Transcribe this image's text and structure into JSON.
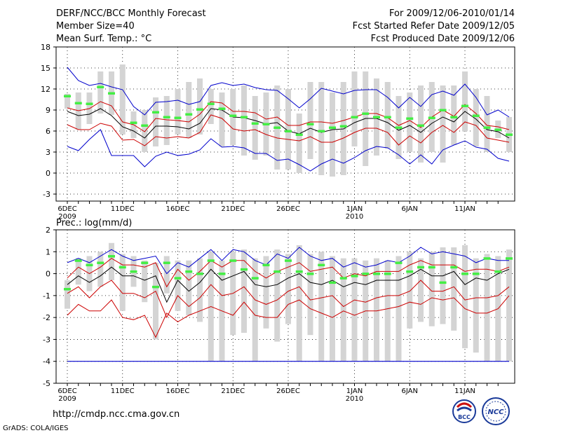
{
  "header": {
    "title": "DERF/NCC/BCC Monthly Forecast",
    "member_size": "Member Size=40",
    "variable": "Mean Surf. Temp.: °C",
    "period": "For 2009/12/06-2010/01/14",
    "started": "Fcst Started Refer Date 2009/12/05",
    "produced": "Fcst Produced Date 2009/12/06"
  },
  "footer": {
    "url": "http://cmdp.ncc.cma.gov.cn",
    "credit": "GrADS: COLA/IGES",
    "logo_bcc": "BCC",
    "logo_ncc": "NCC"
  },
  "colors": {
    "max_min": "#0000cc",
    "percentile": "#cc0000",
    "mean": "#000000",
    "bar": "#d4d4d4",
    "marker": "#44ee44",
    "frame": "#000000"
  },
  "chart_data": [
    {
      "type": "line",
      "title": "Mean Surf. Temp.: °C",
      "ylabel": "°C",
      "ylim": [
        -4,
        18
      ],
      "yticks": [
        -3,
        0,
        3,
        6,
        9,
        12,
        15,
        18
      ],
      "xlim": [
        0,
        39
      ],
      "x_ticks": [
        {
          "label": "6DEC",
          "sub": "2009",
          "day": 0
        },
        {
          "label": "11DEC",
          "sub": "",
          "day": 5
        },
        {
          "label": "16DEC",
          "sub": "",
          "day": 10
        },
        {
          "label": "21DEC",
          "sub": "",
          "day": 15
        },
        {
          "label": "26DEC",
          "sub": "",
          "day": 20
        },
        {
          "label": "1JAN",
          "sub": "2010",
          "day": 26
        },
        {
          "label": "6JAN",
          "sub": "",
          "day": 31
        },
        {
          "label": "11JAN",
          "sub": "",
          "day": 36
        }
      ],
      "series": [
        {
          "name": "max",
          "color": "#0000cc",
          "values": [
            15.1,
            13.2,
            12.5,
            12.8,
            12.3,
            11.9,
            9.5,
            8.3,
            10.1,
            10.2,
            10.4,
            9.8,
            10.2,
            12.5,
            12.9,
            12.5,
            12.7,
            12.2,
            11.9,
            11.8,
            10.6,
            9.3,
            10.6,
            12.1,
            11.7,
            11.3,
            11.8,
            11.9,
            11.9,
            10.8,
            9.3,
            10.8,
            9.5,
            11.2,
            11.7,
            11.1,
            12.7,
            10.8,
            8.3,
            9.0,
            8.0
          ]
        },
        {
          "name": "p90",
          "color": "#cc0000",
          "values": [
            9.3,
            8.9,
            9.2,
            10.2,
            9.6,
            7.3,
            6.9,
            5.9,
            7.8,
            7.6,
            7.5,
            7.3,
            8.4,
            10.2,
            10.0,
            8.8,
            8.8,
            8.6,
            7.7,
            8.0,
            6.8,
            6.8,
            7.3,
            7.3,
            7.1,
            7.5,
            8.0,
            8.5,
            8.5,
            7.9,
            6.8,
            7.5,
            6.5,
            8.0,
            9.0,
            8.1,
            9.8,
            8.5,
            6.8,
            6.6,
            6.2
          ]
        },
        {
          "name": "mean",
          "color": "#000000",
          "values": [
            8.8,
            8.2,
            8.4,
            9.2,
            8.2,
            6.6,
            6.0,
            5.0,
            6.7,
            6.7,
            6.6,
            6.3,
            7.1,
            9.2,
            9.0,
            8.0,
            7.9,
            7.5,
            7.0,
            7.2,
            6.0,
            5.6,
            6.4,
            5.8,
            6.2,
            6.3,
            7.2,
            7.8,
            7.8,
            7.2,
            6.1,
            6.8,
            5.8,
            7.1,
            8.0,
            7.3,
            8.8,
            7.7,
            6.2,
            5.9,
            5.0
          ]
        },
        {
          "name": "p10",
          "color": "#cc0000",
          "values": [
            6.9,
            6.2,
            6.2,
            7.1,
            6.7,
            4.7,
            4.8,
            3.9,
            5.2,
            5.0,
            5.2,
            5.0,
            5.8,
            8.3,
            7.8,
            6.3,
            6.0,
            6.2,
            5.5,
            5.0,
            4.8,
            4.6,
            5.2,
            4.4,
            4.4,
            5.0,
            5.8,
            6.4,
            6.4,
            5.8,
            4.0,
            5.3,
            4.3,
            5.8,
            6.8,
            5.8,
            7.3,
            6.8,
            5.0,
            4.7,
            4.4
          ]
        },
        {
          "name": "min",
          "color": "#0000cc",
          "values": [
            3.8,
            3.2,
            4.8,
            6.2,
            2.5,
            2.5,
            2.5,
            0.9,
            2.4,
            3.0,
            2.5,
            2.7,
            3.3,
            4.9,
            3.7,
            3.8,
            3.6,
            2.8,
            2.8,
            1.8,
            2.0,
            1.2,
            0.3,
            1.3,
            2.0,
            1.4,
            2.2,
            3.2,
            3.8,
            3.6,
            2.6,
            1.3,
            2.6,
            1.3,
            3.3,
            4.0,
            4.6,
            3.7,
            3.4,
            2.1,
            1.7
          ]
        }
      ],
      "bars": {
        "low": [
          9.2,
          6.2,
          7.0,
          8.5,
          8.3,
          5.5,
          5.0,
          3.0,
          3.8,
          4.0,
          5.5,
          5.0,
          5.5,
          7.0,
          3.8,
          4.0,
          2.5,
          1.9,
          2.5,
          0.5,
          0.5,
          0.0,
          2.0,
          -0.3,
          -0.5,
          -0.3,
          3.8,
          1.0,
          2.5,
          3.5,
          2.0,
          3.0,
          1.5,
          3.0,
          1.5,
          4.0,
          6.0,
          3.8,
          3.0,
          5.0,
          3.0
        ],
        "high": [
          11.3,
          11.5,
          11.5,
          14.5,
          14.5,
          15.5,
          8.8,
          9.0,
          10.8,
          11.0,
          12.0,
          13.0,
          13.5,
          12.0,
          11.5,
          12.0,
          12.5,
          11.0,
          11.5,
          12.5,
          12.0,
          8.5,
          13.0,
          13.0,
          11.5,
          13.0,
          14.5,
          14.5,
          13.5,
          13.0,
          11.0,
          11.5,
          12.5,
          13.0,
          12.5,
          12.5,
          14.5,
          12.0,
          11.0,
          7.5,
          8.0
        ],
        "marker": [
          11.0,
          10.0,
          9.9,
          12.3,
          11.4,
          null,
          7.2,
          6.8,
          8.7,
          8.0,
          7.9,
          8.4,
          9.1,
          9.9,
          9.2,
          8.2,
          8.0,
          7.1,
          7.0,
          6.5,
          6.0,
          5.5,
          7.0,
          6.0,
          6.5,
          6.7,
          8.0,
          8.5,
          8.0,
          8.0,
          6.5,
          7.8,
          6.8,
          7.9,
          9.0,
          8.0,
          9.6,
          8.2,
          6.5,
          6.2,
          5.5
        ]
      }
    },
    {
      "type": "line",
      "title": "Prec.: log(mm/d)",
      "ylabel": "log(mm/d)",
      "ylim": [
        -5,
        2
      ],
      "yticks": [
        -5,
        -4,
        -3,
        -2,
        -1,
        0,
        1,
        2
      ],
      "xlim": [
        0,
        39
      ],
      "x_ticks": [
        {
          "label": "6DEC",
          "sub": "2009",
          "day": 0
        },
        {
          "label": "11DEC",
          "sub": "",
          "day": 5
        },
        {
          "label": "16DEC",
          "sub": "",
          "day": 10
        },
        {
          "label": "21DEC",
          "sub": "",
          "day": 15
        },
        {
          "label": "26DEC",
          "sub": "",
          "day": 20
        },
        {
          "label": "1JAN",
          "sub": "2010",
          "day": 26
        },
        {
          "label": "6JAN",
          "sub": "",
          "day": 31
        },
        {
          "label": "11JAN",
          "sub": "",
          "day": 36
        }
      ],
      "series": [
        {
          "name": "max",
          "color": "#0000cc",
          "values": [
            0.5,
            0.7,
            0.5,
            0.8,
            1.1,
            0.8,
            0.6,
            0.7,
            0.8,
            0.0,
            0.5,
            0.3,
            0.7,
            1.1,
            0.6,
            1.1,
            1.0,
            0.6,
            0.4,
            0.9,
            0.7,
            1.2,
            0.8,
            0.6,
            0.7,
            0.3,
            0.5,
            0.3,
            0.4,
            0.6,
            0.5,
            0.8,
            1.2,
            0.9,
            1.0,
            0.9,
            0.8,
            0.5,
            0.7,
            0.6,
            0.6
          ]
        },
        {
          "name": "p90",
          "color": "#cc0000",
          "values": [
            -0.2,
            0.3,
            0.0,
            0.3,
            0.7,
            0.4,
            0.4,
            0.3,
            0.5,
            -0.6,
            0.2,
            -0.3,
            0.1,
            0.6,
            0.3,
            0.6,
            0.6,
            0.1,
            -0.2,
            0.1,
            0.3,
            0.5,
            0.1,
            0.2,
            0.3,
            -0.2,
            0.0,
            -0.1,
            0.1,
            0.1,
            0.1,
            0.4,
            0.6,
            0.4,
            0.4,
            0.4,
            0.1,
            0.2,
            0.2,
            0.1,
            0.3
          ]
        },
        {
          "name": "mean",
          "color": "#000000",
          "values": [
            -0.5,
            -0.1,
            -0.4,
            -0.1,
            0.3,
            -0.1,
            -0.1,
            -0.3,
            -0.1,
            -1.3,
            -0.3,
            -0.8,
            -0.4,
            0.2,
            -0.3,
            -0.1,
            0.1,
            -0.5,
            -0.6,
            -0.5,
            -0.2,
            0.0,
            -0.4,
            -0.5,
            -0.3,
            -0.6,
            -0.4,
            -0.5,
            -0.3,
            -0.3,
            -0.3,
            -0.1,
            0.2,
            -0.1,
            -0.1,
            0.1,
            -0.5,
            -0.2,
            -0.3,
            0.0,
            0.2
          ]
        },
        {
          "name": "p10",
          "color": "#cc0000",
          "values": [
            -0.9,
            -0.6,
            -1.1,
            -0.6,
            -0.3,
            -0.9,
            -0.9,
            -1.1,
            -0.8,
            -2.0,
            -1.0,
            -1.5,
            -1.1,
            -0.5,
            -1.0,
            -0.9,
            -0.6,
            -1.2,
            -1.4,
            -1.2,
            -0.8,
            -0.6,
            -1.2,
            -1.1,
            -1.0,
            -1.5,
            -1.2,
            -1.3,
            -1.1,
            -1.0,
            -1.0,
            -0.8,
            -0.3,
            -0.8,
            -0.8,
            -0.6,
            -1.2,
            -1.1,
            -1.1,
            -1.0,
            -0.6
          ]
        },
        {
          "name": "min",
          "color": "#cc0000",
          "values": [
            -1.9,
            -1.4,
            -1.7,
            -1.7,
            -1.2,
            -2.0,
            -2.1,
            -1.9,
            -2.9,
            -1.8,
            -2.2,
            -1.9,
            -1.7,
            -1.5,
            -1.7,
            -1.9,
            -1.3,
            -1.9,
            -2.0,
            -2.0,
            -1.4,
            -1.2,
            -1.6,
            -1.8,
            -2.0,
            -1.7,
            -1.9,
            -1.7,
            -1.7,
            -1.6,
            -1.5,
            -1.3,
            -1.4,
            -1.1,
            -1.2,
            -1.1,
            -1.6,
            -1.8,
            -1.8,
            -1.6,
            -1.0
          ]
        },
        {
          "name": "floor",
          "color": "#0000cc",
          "values": [
            -4,
            -4,
            -4,
            -4,
            -4,
            -4,
            -4,
            -4,
            -4,
            -4,
            -4,
            -4,
            -4,
            -4,
            -4,
            -4,
            -4,
            -4,
            -4,
            -4,
            -4,
            -4,
            -4,
            -4,
            -4,
            -4,
            -4,
            -4,
            -4,
            -4,
            -4,
            -4,
            -4,
            -4,
            -4,
            -4,
            -4,
            -4,
            -4,
            -4,
            -4
          ]
        }
      ],
      "bars": {
        "low": [
          -1.6,
          -0.5,
          -0.8,
          -0.6,
          -0.3,
          -1.7,
          -0.6,
          -1.3,
          -3.0,
          -0.9,
          -1.7,
          -1.9,
          -2.2,
          -4.0,
          -4.0,
          -2.8,
          -2.7,
          -4.0,
          -2.5,
          -3.1,
          -2.3,
          -4.0,
          -2.8,
          -4.0,
          -4.0,
          -4.0,
          -4.0,
          -4.0,
          -4.0,
          -4.0,
          -4.0,
          -2.5,
          -2.2,
          -2.4,
          -2.3,
          -2.6,
          -3.4,
          -3.6,
          -4.0,
          -4.0,
          -4.0
        ],
        "high": [
          -0.3,
          0.7,
          0.8,
          1.0,
          1.4,
          0.9,
          0.8,
          0.6,
          0.5,
          0.8,
          0.6,
          0.6,
          0.7,
          1.0,
          0.6,
          1.0,
          1.1,
          0.7,
          0.8,
          1.1,
          0.9,
          1.3,
          0.9,
          1.0,
          0.8,
          0.7,
          0.7,
          0.6,
          0.7,
          0.6,
          0.8,
          1.0,
          0.7,
          1.0,
          1.2,
          1.2,
          1.3,
          0.7,
          0.9,
          0.8,
          1.1
        ]
      },
      "marker_note": "",
      "markers": [
        -0.7,
        0.6,
        0.4,
        0.5,
        0.8,
        0.3,
        0.1,
        0.5,
        -0.6,
        0.5,
        -0.2,
        0.1,
        0.0,
        0.6,
        0.0,
        0.6,
        0.2,
        -0.2,
        0.4,
        0.1,
        0.6,
        0.1,
        0.0,
        0.4,
        -0.4,
        -0.2,
        -0.1,
        0.0,
        0.0,
        0.0,
        0.5,
        0.1,
        0.3,
        0.3,
        -0.4,
        0.3,
        0.0,
        0.0,
        0.7,
        0.1,
        0.7
      ]
    }
  ]
}
